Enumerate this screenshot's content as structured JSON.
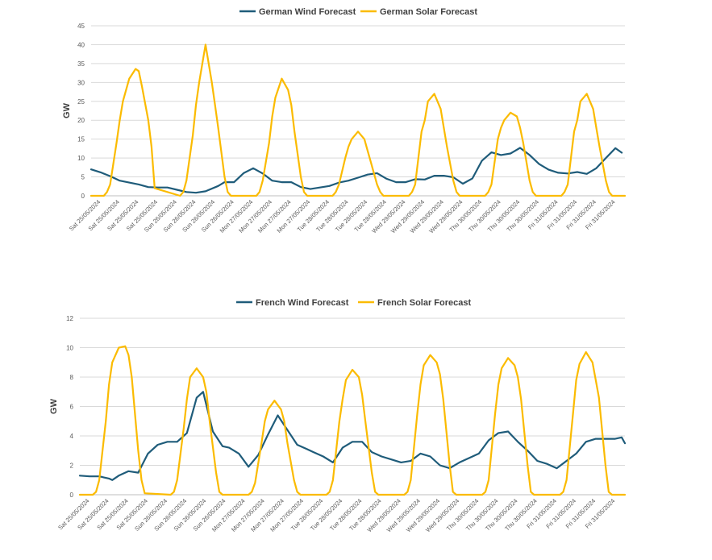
{
  "chart_data": [
    {
      "type": "line",
      "ylabel": "GW",
      "ylim": [
        0,
        45
      ],
      "yticks": [
        0,
        5,
        10,
        15,
        20,
        25,
        30,
        35,
        40,
        45
      ],
      "grid": true,
      "legend_position": "top",
      "x_domain": [
        0,
        168
      ],
      "x_unit": "hours from Sat 25/05/2024 00:00",
      "xtick_labels": [
        "Sat 25/05/2024",
        "Sat 25/05/2024",
        "Sat 25/05/2024",
        "Sat 25/05/2024",
        "Sun 26/05/2024",
        "Sun 26/05/2024",
        "Sun 26/05/2024",
        "Sun 26/05/2024",
        "Mon 27/05/2024",
        "Mon 27/05/2024",
        "Mon 27/05/2024",
        "Mon 27/05/2024",
        "Tue 28/05/2024",
        "Tue 28/05/2024",
        "Tue 28/05/2024",
        "Tue 28/05/2024",
        "Wed 29/05/2024",
        "Wed 29/05/2024",
        "Wed 29/05/2024",
        "Wed 29/05/2024",
        "Thu 30/05/2024",
        "Thu 30/05/2024",
        "Thu 30/05/2024",
        "Thu 30/05/2024",
        "Fri 31/05/2024",
        "Fri 31/05/2024",
        "Fri 31/05/2024",
        "Fri 31/05/2024"
      ],
      "series": [
        {
          "name": "German Wind Forecast",
          "color": "#1f5c7a",
          "x": [
            0,
            3,
            6,
            9,
            12,
            15,
            18,
            21,
            24,
            27,
            30,
            33,
            36,
            40,
            42,
            45,
            48,
            51,
            54,
            57,
            60,
            63,
            66,
            69,
            72,
            75,
            78,
            81,
            84,
            87,
            90,
            93,
            96,
            99,
            102,
            105,
            108,
            111,
            114,
            117,
            120,
            123,
            126,
            129,
            132,
            135,
            138,
            141,
            144,
            147,
            150,
            153,
            156,
            159,
            162,
            165,
            167
          ],
          "y": [
            7,
            6.2,
            5.2,
            4,
            3.5,
            3,
            2.3,
            2.2,
            2.2,
            1.6,
            1,
            0.8,
            1.2,
            2.6,
            3.6,
            3.6,
            6,
            7.3,
            5.9,
            4,
            3.6,
            3.6,
            2.3,
            1.8,
            2.2,
            2.6,
            3.5,
            4,
            4.8,
            5.6,
            6,
            4.5,
            3.6,
            3.6,
            4.4,
            4.3,
            5.3,
            5.3,
            4.9,
            3.2,
            4.6,
            9.3,
            11.5,
            10.8,
            11.2,
            12.7,
            10.8,
            8.4,
            6.9,
            6.1,
            5.9,
            6.3,
            5.8,
            7.3,
            10,
            12.6,
            11.4
          ]
        },
        {
          "name": "German Solar Forecast",
          "color": "#fbbb00",
          "x": [
            0,
            4,
            5,
            6,
            8,
            9,
            10,
            12,
            14,
            15,
            16,
            18,
            19,
            20,
            28,
            29,
            30,
            32,
            33,
            34,
            36,
            38,
            39,
            40,
            42,
            43,
            44,
            52,
            53,
            54,
            56,
            57,
            58,
            60,
            62,
            63,
            64,
            66,
            67,
            68,
            76,
            77,
            78,
            80,
            81,
            82,
            84,
            86,
            87,
            88,
            90,
            91,
            92,
            100,
            101,
            102,
            104,
            105,
            106,
            108,
            110,
            111,
            112,
            114,
            115,
            116,
            124,
            125,
            126,
            128,
            129,
            130,
            132,
            134,
            135,
            136,
            138,
            139,
            140,
            148,
            149,
            150,
            152,
            153,
            154,
            156,
            158,
            159,
            160,
            162,
            163,
            164,
            168
          ],
          "y": [
            0,
            0,
            1,
            3,
            14,
            20,
            25,
            31,
            33.6,
            33,
            29,
            20,
            13,
            2,
            0,
            1,
            4,
            16,
            24,
            30,
            40,
            30,
            24,
            18,
            5,
            1,
            0,
            0,
            1,
            4,
            14,
            21,
            26,
            31,
            28,
            24,
            17,
            5,
            1,
            0,
            0,
            1,
            3,
            10,
            13,
            15,
            17,
            15,
            12,
            9,
            3,
            1,
            0,
            0,
            1,
            3,
            17,
            20,
            25,
            27,
            23,
            18,
            13,
            4,
            1,
            0,
            0,
            1,
            3,
            15,
            18,
            20,
            22,
            21,
            18,
            14,
            4,
            1,
            0,
            0,
            1,
            3,
            17,
            20,
            25,
            27,
            23,
            18,
            13,
            4,
            1,
            0,
            0
          ]
        }
      ]
    },
    {
      "type": "line",
      "ylabel": "GW",
      "ylim": [
        0,
        12
      ],
      "yticks": [
        0,
        2,
        4,
        6,
        8,
        10,
        12
      ],
      "grid": true,
      "legend_position": "top",
      "x_domain": [
        0,
        168
      ],
      "x_unit": "hours from Sat 25/05/2024 00:00",
      "xtick_labels": [
        "Sat 25/05/2024",
        "Sat 25/05/2024",
        "Sat 25/05/2024",
        "Sat 25/05/2024",
        "Sun 26/05/2024",
        "Sun 26/05/2024",
        "Sun 26/05/2024",
        "Sun 26/05/2024",
        "Mon 27/05/2024",
        "Mon 27/05/2024",
        "Mon 27/05/2024",
        "Mon 27/05/2024",
        "Tue 28/05/2024",
        "Tue 28/05/2024",
        "Tue 28/05/2024",
        "Tue 28/05/2024",
        "Wed 29/05/2024",
        "Wed 29/05/2024",
        "Wed 29/05/2024",
        "Wed 29/05/2024",
        "Thu 30/05/2024",
        "Thu 30/05/2024",
        "Thu 30/05/2024",
        "Thu 30/05/2024",
        "Fri 31/05/2024",
        "Fri 31/05/2024",
        "Fri 31/05/2024",
        "Fri 31/05/2024"
      ],
      "series": [
        {
          "name": "French Wind Forecast",
          "color": "#1f5c7a",
          "x": [
            0,
            3,
            6,
            9,
            10,
            12,
            15,
            18,
            21,
            24,
            27,
            30,
            33,
            36,
            38,
            41,
            44,
            46,
            49,
            52,
            55,
            58,
            61,
            64,
            67,
            70,
            72,
            75,
            78,
            81,
            84,
            87,
            90,
            93,
            96,
            99,
            102,
            105,
            108,
            111,
            114,
            117,
            120,
            123,
            126,
            129,
            132,
            135,
            138,
            141,
            144,
            147,
            150,
            153,
            156,
            159,
            162,
            165,
            167,
            168
          ],
          "y": [
            1.3,
            1.25,
            1.25,
            1.1,
            1,
            1.3,
            1.6,
            1.5,
            2.8,
            3.4,
            3.6,
            3.6,
            4.2,
            6.6,
            7,
            4.3,
            3.3,
            3.2,
            2.8,
            1.9,
            2.7,
            4.1,
            5.4,
            4.4,
            3.4,
            3.1,
            2.9,
            2.6,
            2.2,
            3.2,
            3.6,
            3.6,
            2.9,
            2.6,
            2.4,
            2.2,
            2.3,
            2.8,
            2.6,
            2.0,
            1.8,
            2.2,
            2.5,
            2.8,
            3.7,
            4.2,
            4.3,
            3.6,
            3.0,
            2.3,
            2.1,
            1.8,
            2.3,
            2.8,
            3.6,
            3.8,
            3.8,
            3.8,
            3.9,
            3.5
          ]
        },
        {
          "name": "French Solar Forecast",
          "color": "#fbbb00",
          "x": [
            0,
            4,
            5,
            6,
            8,
            9,
            10,
            12,
            14,
            15,
            16,
            18,
            19,
            20,
            28,
            29,
            30,
            32,
            33,
            34,
            36,
            38,
            39,
            40,
            42,
            43,
            44,
            52,
            53,
            54,
            56,
            57,
            58,
            60,
            62,
            63,
            64,
            66,
            67,
            68,
            76,
            77,
            78,
            80,
            81,
            82,
            84,
            86,
            87,
            88,
            90,
            91,
            92,
            100,
            101,
            102,
            104,
            105,
            106,
            108,
            110,
            111,
            112,
            114,
            115,
            116,
            124,
            125,
            126,
            128,
            129,
            130,
            132,
            134,
            135,
            136,
            138,
            139,
            140,
            148,
            149,
            150,
            152,
            153,
            154,
            156,
            158,
            159,
            160,
            162,
            163,
            164,
            168
          ],
          "y": [
            0,
            0,
            0.2,
            1,
            5,
            7.5,
            9,
            10,
            10.1,
            9.5,
            8,
            3,
            1,
            0.1,
            0,
            0.2,
            1,
            4.5,
            6.5,
            8,
            8.6,
            8,
            7,
            5,
            1.5,
            0.2,
            0,
            0,
            0.2,
            0.8,
            3.5,
            5,
            5.8,
            6.4,
            5.8,
            5,
            3.5,
            1,
            0.2,
            0,
            0,
            0.2,
            1,
            5,
            6.5,
            7.8,
            8.5,
            8,
            6.8,
            5,
            1.5,
            0.2,
            0,
            0,
            0.2,
            1,
            5.5,
            7.5,
            8.8,
            9.5,
            9,
            8.2,
            6.5,
            2,
            0.2,
            0,
            0,
            0.2,
            1,
            5.5,
            7.5,
            8.6,
            9.3,
            8.8,
            8,
            6.5,
            2,
            0.2,
            0,
            0,
            0.2,
            1,
            5.5,
            7.8,
            8.9,
            9.7,
            9,
            7.8,
            6.6,
            2,
            0.2,
            0,
            0
          ]
        }
      ]
    }
  ]
}
